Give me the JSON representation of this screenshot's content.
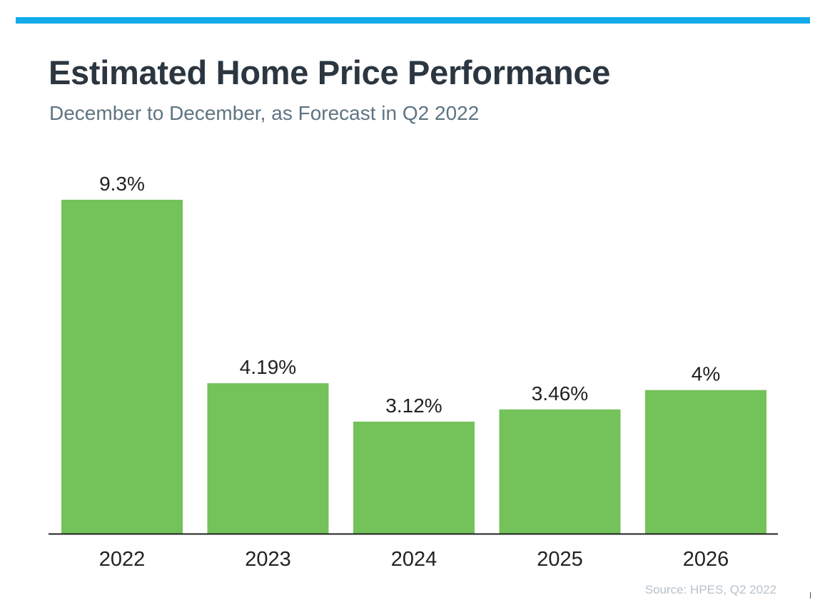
{
  "colors": {
    "accent_bar": "#13aaea",
    "bar": "#74c25a",
    "title": "#2b3640",
    "subtitle": "#5e7481",
    "axis": "#222222",
    "labels": "#222222",
    "source": "#b7c2ca"
  },
  "chart_data": {
    "type": "bar",
    "title": "Estimated Home Price Performance",
    "subtitle": "December to December, as Forecast in Q2 2022",
    "categories": [
      "2022",
      "2023",
      "2024",
      "2025",
      "2026"
    ],
    "values": [
      9.3,
      4.19,
      3.12,
      3.46,
      4
    ],
    "data_labels": [
      "9.3%",
      "4.19%",
      "3.12%",
      "3.46%",
      "4%"
    ],
    "ylim": [
      0,
      9.3
    ],
    "grid": false,
    "legend": "none",
    "source": "Source: HPES, Q2 2022"
  }
}
